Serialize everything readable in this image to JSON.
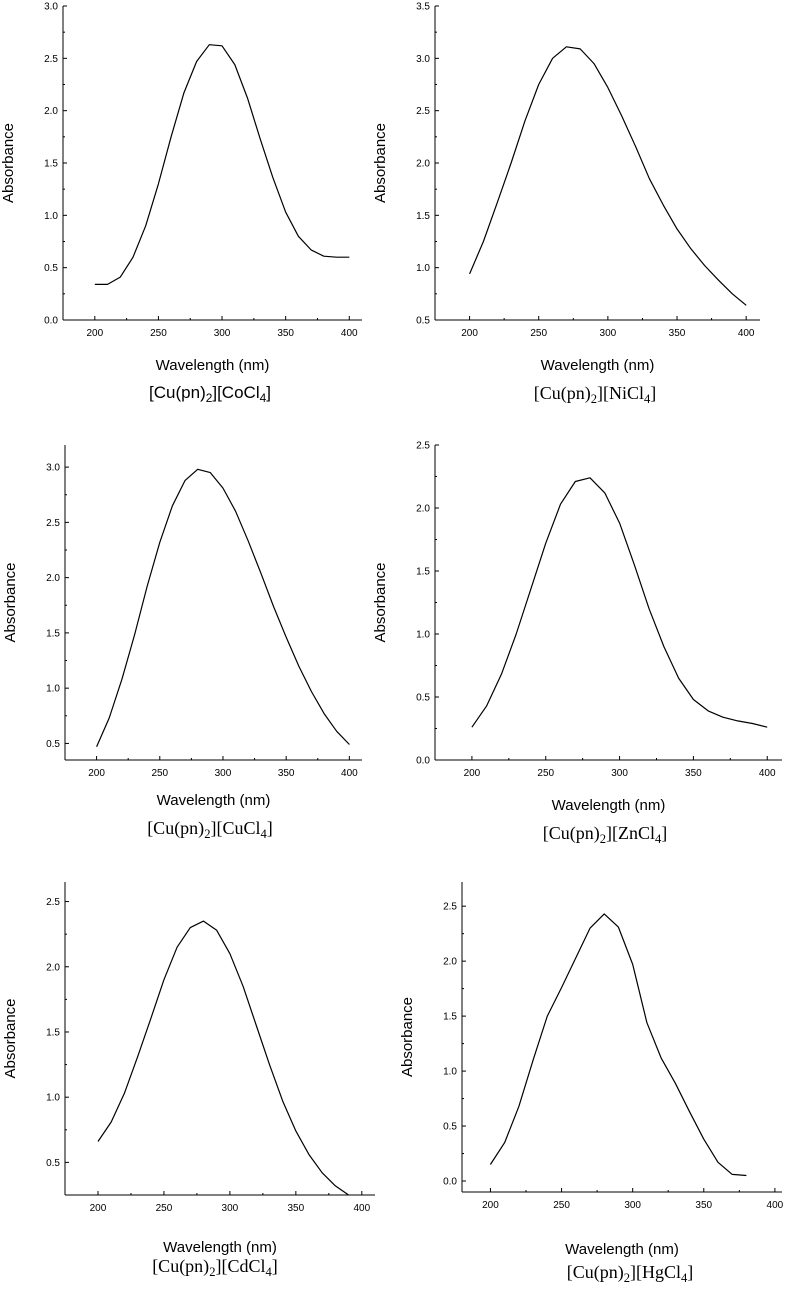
{
  "chart_data": [
    {
      "type": "line",
      "xlabel": "Wavelength (nm)",
      "ylabel": "Absorbance",
      "caption": {
        "pre": "[Cu(pn)",
        "sub1": "2",
        "mid": "][CoCl",
        "sub2": "4",
        "post": "]"
      },
      "xticks": [
        200,
        250,
        300,
        350,
        400
      ],
      "yticks": [
        "0.0",
        "0.5",
        "1.0",
        "1.5",
        "2.0",
        "2.5",
        "3.0"
      ],
      "xlim": [
        175,
        410
      ],
      "ylim": [
        0.0,
        3.0
      ],
      "x": [
        200,
        210,
        220,
        230,
        240,
        250,
        260,
        270,
        280,
        290,
        300,
        310,
        320,
        330,
        340,
        350,
        360,
        370,
        380,
        390,
        400
      ],
      "y": [
        0.34,
        0.34,
        0.41,
        0.6,
        0.9,
        1.3,
        1.75,
        2.17,
        2.47,
        2.63,
        2.62,
        2.44,
        2.12,
        1.73,
        1.36,
        1.03,
        0.8,
        0.67,
        0.61,
        0.6,
        0.6
      ]
    },
    {
      "type": "line",
      "xlabel": "Wavelength (nm)",
      "ylabel": "Absorbance",
      "caption": {
        "pre": "[Cu(pn)",
        "sub1": "2",
        "mid": "][NiCl",
        "sub2": "4",
        "post": "]"
      },
      "xticks": [
        200,
        250,
        300,
        350,
        400
      ],
      "yticks": [
        "0.5",
        "1.0",
        "1.5",
        "2.0",
        "2.5",
        "3.0",
        "3.5"
      ],
      "xlim": [
        175,
        410
      ],
      "ylim": [
        0.5,
        3.5
      ],
      "x": [
        200,
        210,
        220,
        230,
        240,
        250,
        260,
        270,
        280,
        290,
        300,
        310,
        320,
        330,
        340,
        350,
        360,
        370,
        380,
        390,
        400
      ],
      "y": [
        0.94,
        1.25,
        1.62,
        2.0,
        2.4,
        2.75,
        3.0,
        3.11,
        3.09,
        2.95,
        2.72,
        2.45,
        2.16,
        1.85,
        1.6,
        1.37,
        1.18,
        1.02,
        0.88,
        0.75,
        0.64
      ]
    },
    {
      "type": "line",
      "xlabel": "Wavelength (nm)",
      "ylabel": "Absorbance",
      "caption": {
        "pre": "[Cu(pn)",
        "sub1": "2",
        "mid": "][CuCl",
        "sub2": "4",
        "post": "]"
      },
      "xticks": [
        200,
        250,
        300,
        350,
        400
      ],
      "yticks": [
        "0.5",
        "1.0",
        "1.5",
        "2.0",
        "2.5",
        "3.0"
      ],
      "xlim": [
        175,
        410
      ],
      "ylim": [
        0.35,
        3.2
      ],
      "x": [
        200,
        210,
        220,
        230,
        240,
        250,
        260,
        270,
        280,
        290,
        300,
        310,
        320,
        330,
        340,
        350,
        360,
        370,
        380,
        390,
        400
      ],
      "y": [
        0.47,
        0.73,
        1.08,
        1.48,
        1.92,
        2.32,
        2.65,
        2.88,
        2.98,
        2.95,
        2.81,
        2.6,
        2.33,
        2.04,
        1.74,
        1.46,
        1.2,
        0.97,
        0.77,
        0.61,
        0.49
      ]
    },
    {
      "type": "line",
      "xlabel": "Wavelength (nm)",
      "ylabel": "Absorbance",
      "caption": {
        "pre": "[Cu(pn)",
        "sub1": "2",
        "mid": "][ZnCl",
        "sub2": "4",
        "post": "]"
      },
      "xticks": [
        200,
        250,
        300,
        350,
        400
      ],
      "yticks": [
        "0.0",
        "0.5",
        "1.0",
        "1.5",
        "2.0",
        "2.5"
      ],
      "xlim": [
        175,
        410
      ],
      "ylim": [
        0.0,
        2.5
      ],
      "x": [
        200,
        210,
        220,
        230,
        240,
        250,
        260,
        270,
        280,
        290,
        300,
        310,
        320,
        330,
        340,
        350,
        360,
        370,
        380,
        390,
        400
      ],
      "y": [
        0.26,
        0.43,
        0.68,
        1.0,
        1.36,
        1.72,
        2.03,
        2.21,
        2.24,
        2.12,
        1.88,
        1.55,
        1.2,
        0.9,
        0.65,
        0.48,
        0.39,
        0.34,
        0.31,
        0.29,
        0.26
      ]
    },
    {
      "type": "line",
      "xlabel": "Wavelength (nm)",
      "ylabel": "Absorbance",
      "caption": {
        "pre": "[Cu(pn)",
        "sub1": "2",
        "mid": "][CdCl",
        "sub2": "4",
        "post": "]"
      },
      "xticks": [
        200,
        250,
        300,
        350,
        400
      ],
      "yticks": [
        "0.5",
        "1.0",
        "1.5",
        "2.0",
        "2.5"
      ],
      "xlim": [
        175,
        410
      ],
      "ylim": [
        0.25,
        2.65
      ],
      "x": [
        200,
        210,
        220,
        230,
        240,
        250,
        260,
        270,
        280,
        290,
        300,
        310,
        320,
        330,
        340,
        350,
        360,
        370,
        380,
        390
      ],
      "y": [
        0.66,
        0.81,
        1.03,
        1.31,
        1.6,
        1.9,
        2.15,
        2.3,
        2.35,
        2.28,
        2.1,
        1.85,
        1.55,
        1.25,
        0.97,
        0.74,
        0.56,
        0.42,
        0.32,
        0.25
      ]
    },
    {
      "type": "line",
      "xlabel": "Wavelength (nm)",
      "ylabel": "Absorbance",
      "caption": {
        "pre": "[Cu(pn)",
        "sub1": "2",
        "mid": "][HgCl",
        "sub2": "4",
        "post": "]"
      },
      "xticks": [
        200,
        250,
        300,
        350,
        400
      ],
      "yticks": [
        "0.0",
        "0.5",
        "1.0",
        "1.5",
        "2.0",
        "2.5"
      ],
      "xlim": [
        180,
        405
      ],
      "ylim": [
        -0.1,
        2.72
      ],
      "x": [
        200,
        210,
        220,
        230,
        240,
        250,
        260,
        270,
        280,
        290,
        300,
        310,
        320,
        330,
        340,
        350,
        360,
        370,
        380
      ],
      "y": [
        0.15,
        0.35,
        0.68,
        1.1,
        1.5,
        1.76,
        2.03,
        2.3,
        2.43,
        2.31,
        1.97,
        1.44,
        1.12,
        0.89,
        0.63,
        0.38,
        0.17,
        0.06,
        0.05
      ]
    }
  ]
}
